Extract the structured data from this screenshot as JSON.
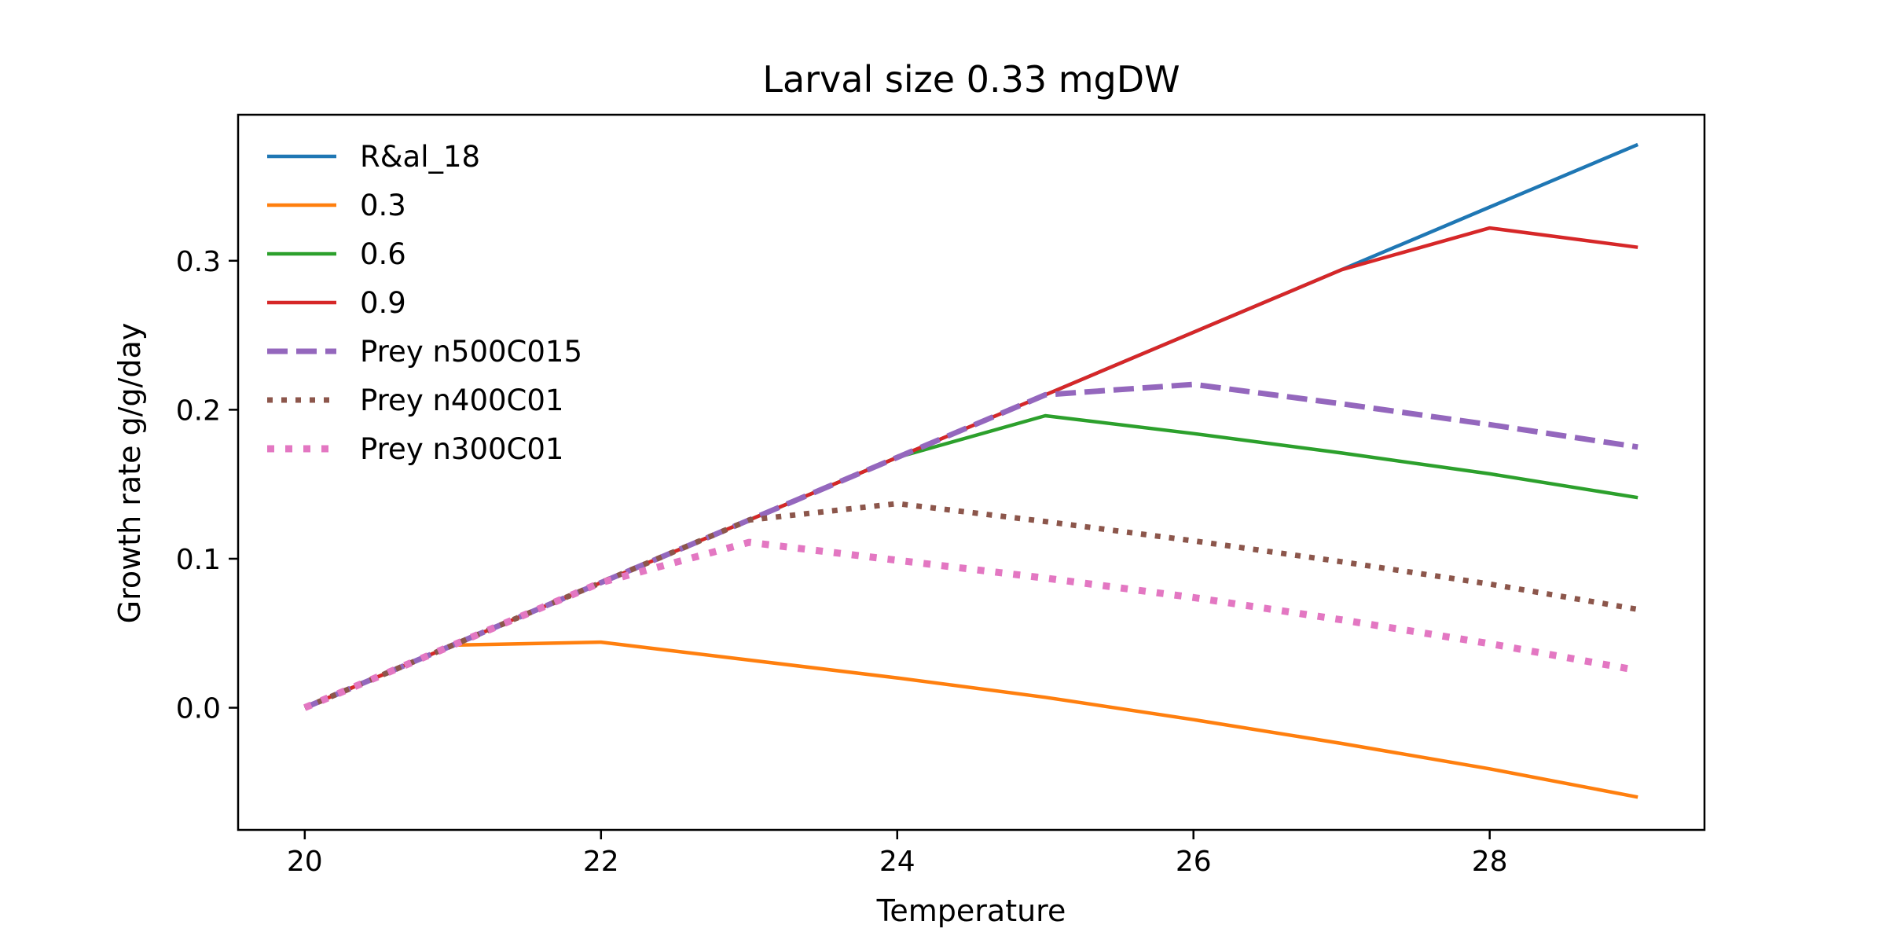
{
  "chart_data": {
    "type": "line",
    "title": "Larval size 0.33 mgDW",
    "xlabel": "Temperature",
    "ylabel": "Growth rate g/g/day",
    "xlim": [
      19.55,
      29.45
    ],
    "ylim": [
      -0.082,
      0.398
    ],
    "x_ticks": [
      20,
      22,
      24,
      26,
      28
    ],
    "y_ticks": [
      0.0,
      0.1,
      0.2,
      0.3
    ],
    "x_tick_labels": [
      "20",
      "22",
      "24",
      "26",
      "28"
    ],
    "y_tick_labels": [
      "0.0",
      "0.1",
      "0.2",
      "0.3"
    ],
    "grid": false,
    "legend_position": "upper-left",
    "x": [
      20,
      21,
      22,
      23,
      24,
      25,
      26,
      27,
      28,
      29
    ],
    "series": [
      {
        "name": "R&al_18",
        "color": "#1f77b4",
        "style": "solid",
        "values": [
          0.0,
          0.042,
          0.084,
          0.126,
          0.168,
          0.21,
          0.252,
          0.294,
          0.336,
          0.378
        ]
      },
      {
        "name": "0.3",
        "color": "#ff7f0e",
        "style": "solid",
        "values": [
          0.0,
          0.042,
          0.044,
          0.032,
          0.02,
          0.007,
          -0.008,
          -0.024,
          -0.041,
          -0.06
        ]
      },
      {
        "name": "0.6",
        "color": "#2ca02c",
        "style": "solid",
        "values": [
          0.0,
          0.042,
          0.084,
          0.126,
          0.168,
          0.196,
          0.184,
          0.171,
          0.157,
          0.141
        ]
      },
      {
        "name": "0.9",
        "color": "#d62728",
        "style": "solid",
        "values": [
          0.0,
          0.042,
          0.084,
          0.126,
          0.168,
          0.21,
          0.252,
          0.294,
          0.322,
          0.309
        ]
      },
      {
        "name": "Prey n500C015",
        "color": "#9467bd",
        "style": "dashed",
        "values": [
          0.0,
          0.042,
          0.084,
          0.126,
          0.168,
          0.21,
          0.217,
          0.204,
          0.19,
          0.175
        ]
      },
      {
        "name": "Prey n400C01",
        "color": "#8c564b",
        "style": "dotted",
        "values": [
          0.0,
          0.042,
          0.084,
          0.126,
          0.137,
          0.125,
          0.112,
          0.098,
          0.083,
          0.066
        ]
      },
      {
        "name": "Prey n300C01",
        "color": "#e377c2",
        "style": "dotted-thick",
        "values": [
          0.0,
          0.042,
          0.084,
          0.111,
          0.099,
          0.087,
          0.074,
          0.059,
          0.043,
          0.025
        ]
      }
    ]
  }
}
